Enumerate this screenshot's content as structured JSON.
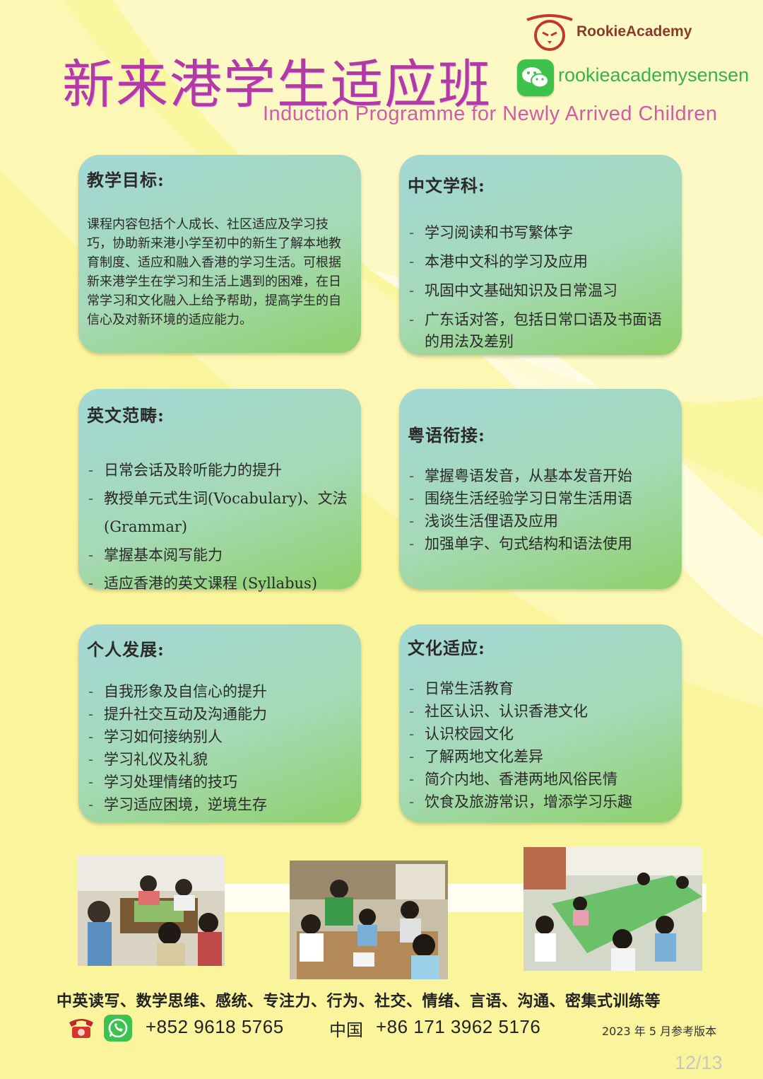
{
  "header": {
    "logo_text": "RookieAcademy",
    "wechat_id": "rookieacademysensen",
    "title": "新来港学生适应班",
    "subtitle": "Induction Programme for Newly Arrived Children"
  },
  "cards": {
    "goal": {
      "title": "教学目标:",
      "body": "课程内容包括个人成长、社区适应及学习技巧，协助新来港小学至初中的新生了解本地教育制度、适应和融入香港的学习生活。可根据新来港学生在学习和生活上遇到的困难，在日常学习和文化融入上给予帮助，提高学生的自信心及对新环境的适应能力。"
    },
    "chinese": {
      "title": "中文学科:",
      "items": [
        "学习阅读和书写繁体字",
        "本港中文科的学习及应用",
        "巩固中文基础知识及日常温习",
        "广东话对答，包括日常口语及书面语的用法及差别"
      ]
    },
    "english": {
      "title": "英文范畴:",
      "items": [
        "日常会话及聆听能力的提升",
        "教授单元式生词(Vocabulary)、文法(Grammar)",
        "掌握基本阅写能力",
        "适应香港的英文课程 (Syllabus)"
      ]
    },
    "cantonese": {
      "title": "粤语衔接:",
      "items": [
        "掌握粤语发音，从基本发音开始",
        "围绕生活经验学习日常生活用语",
        "浅谈生活俚语及应用",
        "加强单字、句式结构和语法使用"
      ]
    },
    "personal": {
      "title": "个人发展:",
      "items": [
        "自我形象及自信心的提升",
        "提升社交互动及沟通能力",
        "学习如何接纳别人",
        "学习礼仪及礼貌",
        "学习处理情绪的技巧",
        "学习适应困境，逆境生存"
      ]
    },
    "culture": {
      "title": "文化适应:",
      "items": [
        "日常生活教育",
        "社区认识、认识香港文化",
        "认识校园文化",
        "了解两地文化差异",
        "简介内地、香港两地风俗民情",
        "饮食及旅游常识，增添学习乐趣"
      ]
    }
  },
  "footer": {
    "services": "中英读写、数学思维、感统、专注力、行为、社交、情绪、言语、沟通、密集式训练等",
    "phone_hk": "+852 9618 5765",
    "phone_cn_label": "中国",
    "phone_cn": "+86 171 3962 5176",
    "version": "2023 年 5 月参考版本",
    "page_number": "12/13"
  }
}
